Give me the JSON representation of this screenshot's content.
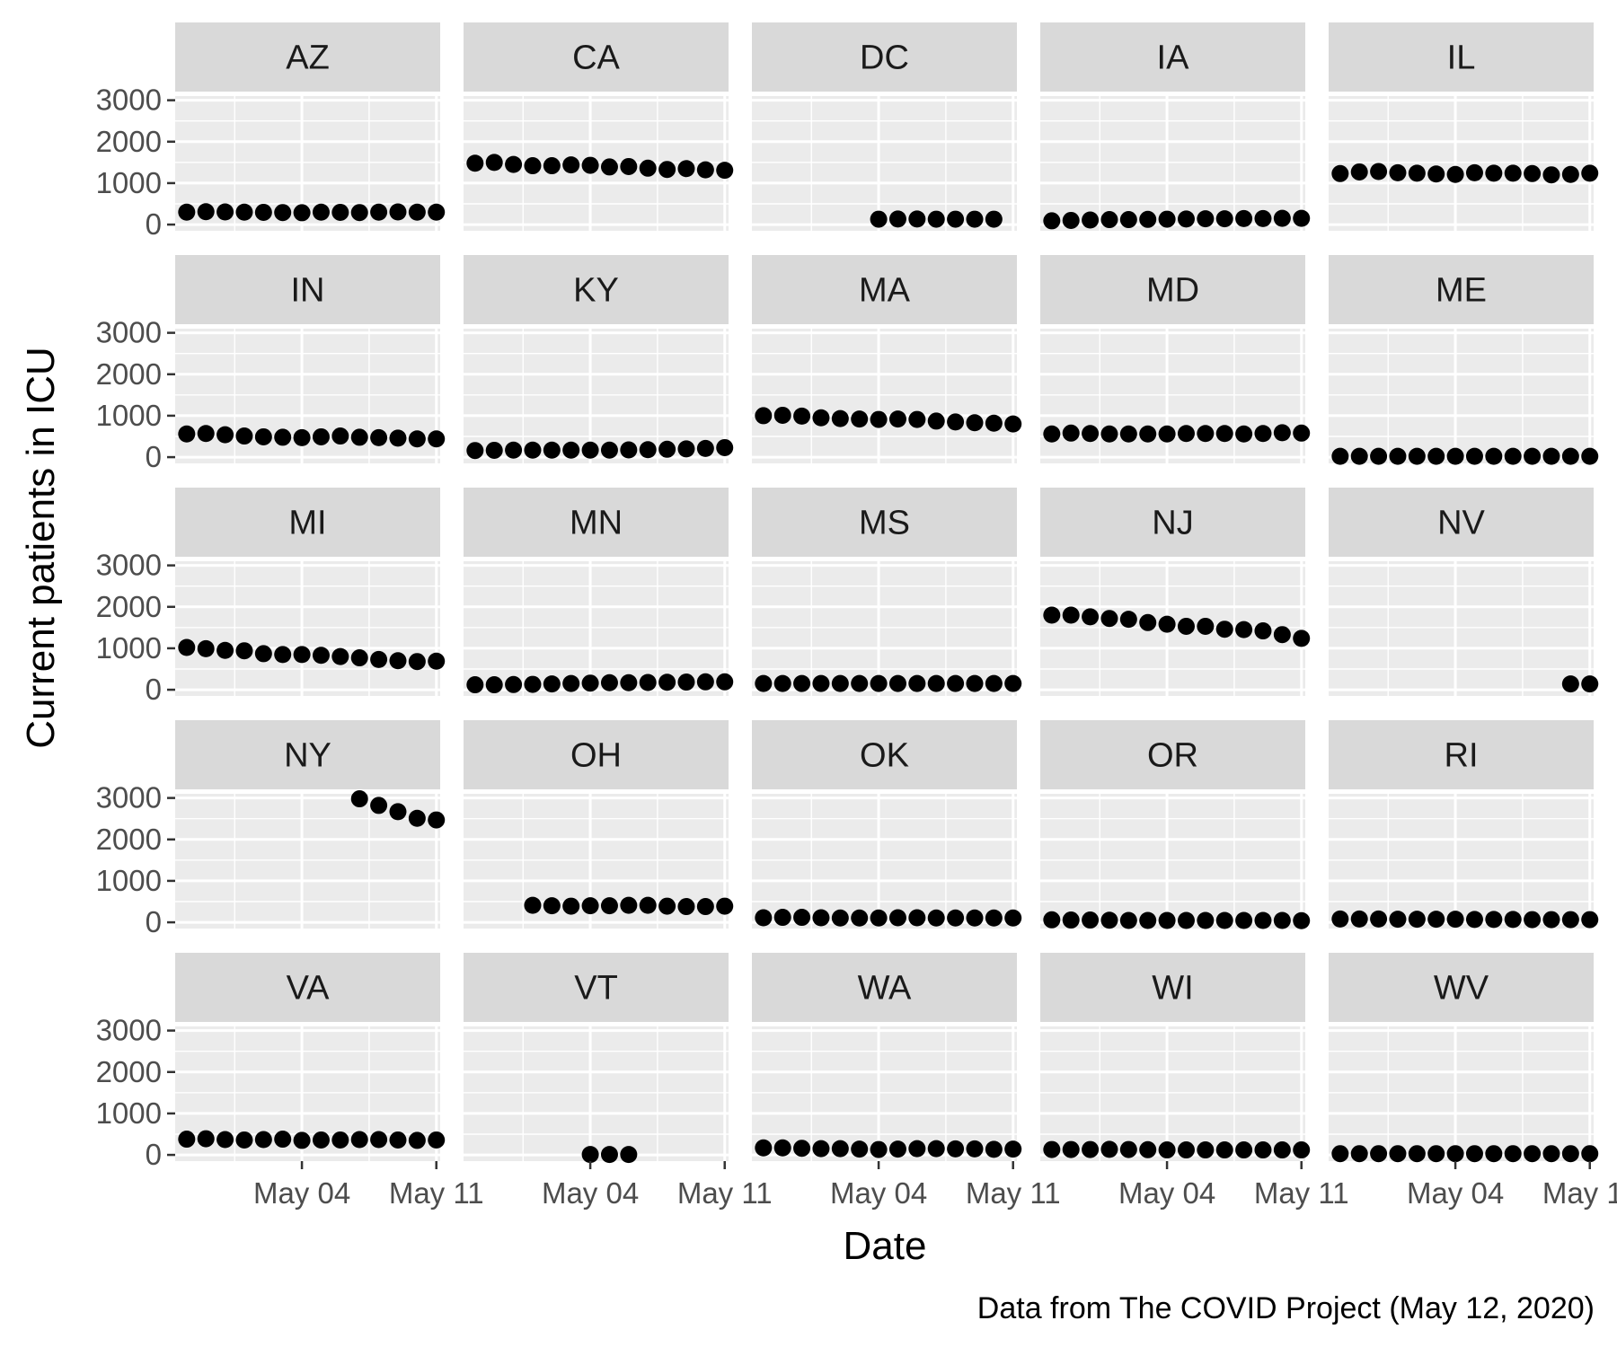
{
  "chart_data": {
    "type": "scatter",
    "facet_layout": "facet_wrap 5 columns x 5 rows, shared axes",
    "xlabel": "Date",
    "ylabel": "Current patients in ICU",
    "caption": "Data from The COVID Project (May 12, 2020)",
    "x_range": [
      "2020-04-28",
      "2020-05-11"
    ],
    "x_ticks": [
      {
        "value": "2020-05-04",
        "label": "May 04"
      },
      {
        "value": "2020-05-11",
        "label": "May 11"
      }
    ],
    "y_ticks": [
      0,
      1000,
      2000,
      3000
    ],
    "ylim": [
      -150,
      3100
    ],
    "grid": true,
    "colors": {
      "panel_bg": "#ebebeb",
      "strip_bg": "#d9d9d9",
      "grid": "#ffffff",
      "point": "#000000"
    },
    "facets": [
      {
        "label": "AZ",
        "x": [
          "2020-04-28",
          "2020-04-29",
          "2020-04-30",
          "2020-05-01",
          "2020-05-02",
          "2020-05-03",
          "2020-05-04",
          "2020-05-05",
          "2020-05-06",
          "2020-05-07",
          "2020-05-08",
          "2020-05-09",
          "2020-05-10",
          "2020-05-11"
        ],
        "y": [
          300,
          310,
          305,
          300,
          295,
          290,
          285,
          300,
          295,
          290,
          300,
          305,
          300,
          300
        ]
      },
      {
        "label": "CA",
        "x": [
          "2020-04-28",
          "2020-04-29",
          "2020-04-30",
          "2020-05-01",
          "2020-05-02",
          "2020-05-03",
          "2020-05-04",
          "2020-05-05",
          "2020-05-06",
          "2020-05-07",
          "2020-05-08",
          "2020-05-09",
          "2020-05-10",
          "2020-05-11"
        ],
        "y": [
          1480,
          1500,
          1450,
          1420,
          1420,
          1440,
          1430,
          1390,
          1400,
          1360,
          1330,
          1350,
          1320,
          1310
        ]
      },
      {
        "label": "DC",
        "x": [
          "2020-05-04",
          "2020-05-05",
          "2020-05-06",
          "2020-05-07",
          "2020-05-08",
          "2020-05-09",
          "2020-05-10"
        ],
        "y": [
          130,
          135,
          135,
          130,
          130,
          130,
          130
        ]
      },
      {
        "label": "IA",
        "x": [
          "2020-04-28",
          "2020-04-29",
          "2020-04-30",
          "2020-05-01",
          "2020-05-02",
          "2020-05-03",
          "2020-05-04",
          "2020-05-05",
          "2020-05-06",
          "2020-05-07",
          "2020-05-08",
          "2020-05-09",
          "2020-05-10",
          "2020-05-11"
        ],
        "y": [
          90,
          100,
          110,
          120,
          120,
          125,
          130,
          135,
          140,
          140,
          145,
          145,
          150,
          150
        ]
      },
      {
        "label": "IL",
        "x": [
          "2020-04-28",
          "2020-04-29",
          "2020-04-30",
          "2020-05-01",
          "2020-05-02",
          "2020-05-03",
          "2020-05-04",
          "2020-05-05",
          "2020-05-06",
          "2020-05-07",
          "2020-05-08",
          "2020-05-09",
          "2020-05-10",
          "2020-05-11"
        ],
        "y": [
          1230,
          1270,
          1280,
          1250,
          1240,
          1220,
          1210,
          1250,
          1240,
          1240,
          1230,
          1200,
          1210,
          1240
        ]
      },
      {
        "label": "IN",
        "x": [
          "2020-04-28",
          "2020-04-29",
          "2020-04-30",
          "2020-05-01",
          "2020-05-02",
          "2020-05-03",
          "2020-05-04",
          "2020-05-05",
          "2020-05-06",
          "2020-05-07",
          "2020-05-08",
          "2020-05-09",
          "2020-05-10",
          "2020-05-11"
        ],
        "y": [
          560,
          570,
          540,
          510,
          490,
          480,
          470,
          490,
          510,
          480,
          470,
          460,
          440,
          440
        ]
      },
      {
        "label": "KY",
        "x": [
          "2020-04-28",
          "2020-04-29",
          "2020-04-30",
          "2020-05-01",
          "2020-05-02",
          "2020-05-03",
          "2020-05-04",
          "2020-05-05",
          "2020-05-06",
          "2020-05-07",
          "2020-05-08",
          "2020-05-09",
          "2020-05-10",
          "2020-05-11"
        ],
        "y": [
          160,
          165,
          170,
          170,
          170,
          170,
          170,
          170,
          175,
          180,
          190,
          200,
          210,
          230
        ]
      },
      {
        "label": "MA",
        "x": [
          "2020-04-28",
          "2020-04-29",
          "2020-04-30",
          "2020-05-01",
          "2020-05-02",
          "2020-05-03",
          "2020-05-04",
          "2020-05-05",
          "2020-05-06",
          "2020-05-07",
          "2020-05-08",
          "2020-05-09",
          "2020-05-10",
          "2020-05-11"
        ],
        "y": [
          1000,
          1010,
          990,
          950,
          930,
          920,
          910,
          920,
          910,
          870,
          850,
          830,
          820,
          800
        ]
      },
      {
        "label": "MD",
        "x": [
          "2020-04-28",
          "2020-04-29",
          "2020-04-30",
          "2020-05-01",
          "2020-05-02",
          "2020-05-03",
          "2020-05-04",
          "2020-05-05",
          "2020-05-06",
          "2020-05-07",
          "2020-05-08",
          "2020-05-09",
          "2020-05-10",
          "2020-05-11"
        ],
        "y": [
          560,
          580,
          570,
          560,
          560,
          560,
          560,
          570,
          570,
          570,
          560,
          570,
          590,
          580
        ]
      },
      {
        "label": "ME",
        "x": [
          "2020-04-28",
          "2020-04-29",
          "2020-04-30",
          "2020-05-01",
          "2020-05-02",
          "2020-05-03",
          "2020-05-04",
          "2020-05-05",
          "2020-05-06",
          "2020-05-07",
          "2020-05-08",
          "2020-05-09",
          "2020-05-10",
          "2020-05-11"
        ],
        "y": [
          20,
          20,
          20,
          20,
          20,
          20,
          20,
          20,
          20,
          20,
          20,
          20,
          20,
          20
        ]
      },
      {
        "label": "MI",
        "x": [
          "2020-04-28",
          "2020-04-29",
          "2020-04-30",
          "2020-05-01",
          "2020-05-02",
          "2020-05-03",
          "2020-05-04",
          "2020-05-05",
          "2020-05-06",
          "2020-05-07",
          "2020-05-08",
          "2020-05-09",
          "2020-05-10",
          "2020-05-11"
        ],
        "y": [
          1020,
          990,
          950,
          940,
          870,
          850,
          850,
          830,
          800,
          770,
          730,
          700,
          680,
          690
        ]
      },
      {
        "label": "MN",
        "x": [
          "2020-04-28",
          "2020-04-29",
          "2020-04-30",
          "2020-05-01",
          "2020-05-02",
          "2020-05-03",
          "2020-05-04",
          "2020-05-05",
          "2020-05-06",
          "2020-05-07",
          "2020-05-08",
          "2020-05-09",
          "2020-05-10",
          "2020-05-11"
        ],
        "y": [
          120,
          120,
          125,
          130,
          140,
          150,
          160,
          170,
          170,
          175,
          180,
          185,
          190,
          190
        ]
      },
      {
        "label": "MS",
        "x": [
          "2020-04-28",
          "2020-04-29",
          "2020-04-30",
          "2020-05-01",
          "2020-05-02",
          "2020-05-03",
          "2020-05-04",
          "2020-05-05",
          "2020-05-06",
          "2020-05-07",
          "2020-05-08",
          "2020-05-09",
          "2020-05-10",
          "2020-05-11"
        ],
        "y": [
          150,
          150,
          150,
          150,
          150,
          150,
          150,
          150,
          150,
          150,
          150,
          150,
          150,
          150
        ]
      },
      {
        "label": "NJ",
        "x": [
          "2020-04-28",
          "2020-04-29",
          "2020-04-30",
          "2020-05-01",
          "2020-05-02",
          "2020-05-03",
          "2020-05-04",
          "2020-05-05",
          "2020-05-06",
          "2020-05-07",
          "2020-05-08",
          "2020-05-09",
          "2020-05-10",
          "2020-05-11"
        ],
        "y": [
          1800,
          1800,
          1760,
          1720,
          1700,
          1620,
          1580,
          1530,
          1530,
          1460,
          1450,
          1420,
          1330,
          1240
        ]
      },
      {
        "label": "NV",
        "x": [
          "2020-05-10",
          "2020-05-11"
        ],
        "y": [
          140,
          140
        ]
      },
      {
        "label": "NY",
        "x": [
          "2020-05-07",
          "2020-05-08",
          "2020-05-09",
          "2020-05-10",
          "2020-05-11"
        ],
        "y": [
          2980,
          2820,
          2670,
          2510,
          2470
        ]
      },
      {
        "label": "OH",
        "x": [
          "2020-05-01",
          "2020-05-02",
          "2020-05-03",
          "2020-05-04",
          "2020-05-05",
          "2020-05-06",
          "2020-05-07",
          "2020-05-08",
          "2020-05-09",
          "2020-05-10",
          "2020-05-11"
        ],
        "y": [
          410,
          400,
          390,
          400,
          400,
          410,
          410,
          390,
          380,
          380,
          390
        ]
      },
      {
        "label": "OK",
        "x": [
          "2020-04-28",
          "2020-04-29",
          "2020-04-30",
          "2020-05-01",
          "2020-05-02",
          "2020-05-03",
          "2020-05-04",
          "2020-05-05",
          "2020-05-06",
          "2020-05-07",
          "2020-05-08",
          "2020-05-09",
          "2020-05-10",
          "2020-05-11"
        ],
        "y": [
          110,
          120,
          120,
          110,
          105,
          105,
          105,
          110,
          110,
          105,
          105,
          105,
          105,
          105
        ]
      },
      {
        "label": "OR",
        "x": [
          "2020-04-28",
          "2020-04-29",
          "2020-04-30",
          "2020-05-01",
          "2020-05-02",
          "2020-05-03",
          "2020-05-04",
          "2020-05-05",
          "2020-05-06",
          "2020-05-07",
          "2020-05-08",
          "2020-05-09",
          "2020-05-10",
          "2020-05-11"
        ],
        "y": [
          60,
          55,
          55,
          50,
          45,
          45,
          45,
          45,
          45,
          45,
          45,
          45,
          45,
          40
        ]
      },
      {
        "label": "RI",
        "x": [
          "2020-04-28",
          "2020-04-29",
          "2020-04-30",
          "2020-05-01",
          "2020-05-02",
          "2020-05-03",
          "2020-05-04",
          "2020-05-05",
          "2020-05-06",
          "2020-05-07",
          "2020-05-08",
          "2020-05-09",
          "2020-05-10",
          "2020-05-11"
        ],
        "y": [
          80,
          80,
          80,
          75,
          75,
          75,
          75,
          70,
          70,
          70,
          65,
          65,
          65,
          65
        ]
      },
      {
        "label": "VA",
        "x": [
          "2020-04-28",
          "2020-04-29",
          "2020-04-30",
          "2020-05-01",
          "2020-05-02",
          "2020-05-03",
          "2020-05-04",
          "2020-05-05",
          "2020-05-06",
          "2020-05-07",
          "2020-05-08",
          "2020-05-09",
          "2020-05-10",
          "2020-05-11"
        ],
        "y": [
          380,
          390,
          370,
          360,
          370,
          380,
          350,
          360,
          360,
          370,
          370,
          360,
          350,
          360
        ]
      },
      {
        "label": "VT",
        "x": [
          "2020-05-04",
          "2020-05-05",
          "2020-05-06"
        ],
        "y": [
          10,
          10,
          10
        ]
      },
      {
        "label": "WA",
        "x": [
          "2020-04-28",
          "2020-04-29",
          "2020-04-30",
          "2020-05-01",
          "2020-05-02",
          "2020-05-03",
          "2020-05-04",
          "2020-05-05",
          "2020-05-06",
          "2020-05-07",
          "2020-05-08",
          "2020-05-09",
          "2020-05-10",
          "2020-05-11"
        ],
        "y": [
          170,
          170,
          160,
          150,
          150,
          140,
          130,
          140,
          150,
          150,
          145,
          145,
          135,
          140
        ]
      },
      {
        "label": "WI",
        "x": [
          "2020-04-28",
          "2020-04-29",
          "2020-04-30",
          "2020-05-01",
          "2020-05-02",
          "2020-05-03",
          "2020-05-04",
          "2020-05-05",
          "2020-05-06",
          "2020-05-07",
          "2020-05-08",
          "2020-05-09",
          "2020-05-10",
          "2020-05-11"
        ],
        "y": [
          130,
          130,
          130,
          135,
          130,
          125,
          120,
          120,
          120,
          120,
          120,
          120,
          120,
          120
        ]
      },
      {
        "label": "WV",
        "x": [
          "2020-04-28",
          "2020-04-29",
          "2020-04-30",
          "2020-05-01",
          "2020-05-02",
          "2020-05-03",
          "2020-05-04",
          "2020-05-05",
          "2020-05-06",
          "2020-05-07",
          "2020-05-08",
          "2020-05-09",
          "2020-05-10",
          "2020-05-11"
        ],
        "y": [
          30,
          30,
          30,
          30,
          30,
          30,
          30,
          30,
          30,
          30,
          30,
          30,
          30,
          30
        ]
      }
    ]
  }
}
